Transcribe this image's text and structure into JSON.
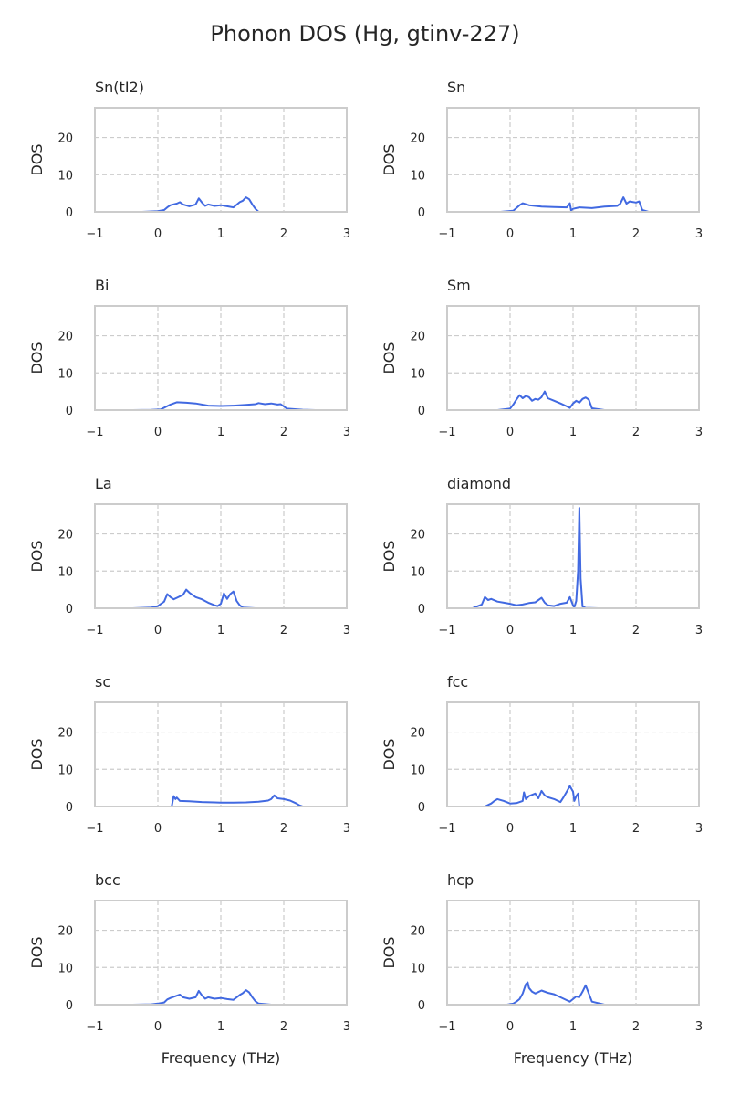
{
  "title": "Phonon DOS (Hg, gtinv-227)",
  "colors": {
    "line": "#4169e1",
    "frame": "#cccccc",
    "grid": "#cccccc",
    "text": "#262626",
    "background": "#ffffff"
  },
  "chart_data": [
    {
      "type": "line",
      "title": "Sn(tI2)",
      "xlabel": "",
      "ylabel": "DOS",
      "xlim": [
        -1,
        3
      ],
      "ylim": [
        0,
        28
      ],
      "xticks": [
        "−1",
        "0",
        "1",
        "2",
        "3"
      ],
      "yticks": [
        "0",
        "10",
        "20"
      ],
      "grid": true,
      "x": [
        -0.25,
        0.0,
        0.1,
        0.15,
        0.2,
        0.3,
        0.35,
        0.4,
        0.5,
        0.6,
        0.65,
        0.7,
        0.75,
        0.8,
        0.9,
        1.0,
        1.1,
        1.2,
        1.3,
        1.35,
        1.4,
        1.45,
        1.5,
        1.55,
        1.6
      ],
      "y": [
        0,
        0.2,
        0.5,
        1.2,
        1.8,
        2.2,
        2.6,
        2.0,
        1.5,
        2.0,
        3.6,
        2.5,
        1.6,
        2.0,
        1.6,
        1.8,
        1.5,
        1.2,
        2.6,
        3.0,
        3.9,
        3.4,
        2.0,
        0.8,
        0
      ]
    },
    {
      "type": "line",
      "title": "Sn",
      "xlabel": "",
      "ylabel": "DOS",
      "xlim": [
        -1,
        3
      ],
      "ylim": [
        0,
        28
      ],
      "xticks": [
        "−1",
        "0",
        "1",
        "2",
        "3"
      ],
      "yticks": [
        "0",
        "10",
        "20"
      ],
      "grid": true,
      "x": [
        -0.15,
        0.05,
        0.1,
        0.15,
        0.2,
        0.3,
        0.5,
        0.7,
        0.9,
        0.95,
        0.97,
        1.0,
        1.1,
        1.3,
        1.5,
        1.7,
        1.75,
        1.8,
        1.85,
        1.9,
        2.0,
        2.05,
        2.1,
        2.2
      ],
      "y": [
        0,
        0.3,
        1.0,
        1.8,
        2.3,
        1.8,
        1.4,
        1.3,
        1.2,
        2.3,
        0.4,
        0.8,
        1.2,
        1.0,
        1.4,
        1.6,
        2.2,
        3.9,
        2.2,
        2.8,
        2.5,
        2.8,
        0.5,
        0
      ]
    },
    {
      "type": "line",
      "title": "Bi",
      "xlabel": "",
      "ylabel": "DOS",
      "xlim": [
        -1,
        3
      ],
      "ylim": [
        0,
        28
      ],
      "xticks": [
        "−1",
        "0",
        "1",
        "2",
        "3"
      ],
      "yticks": [
        "0",
        "10",
        "20"
      ],
      "grid": true,
      "x": [
        -0.4,
        -0.1,
        0.05,
        0.2,
        0.3,
        0.45,
        0.6,
        0.8,
        1.0,
        1.2,
        1.4,
        1.55,
        1.6,
        1.7,
        1.8,
        1.9,
        1.95,
        2.05,
        2.3,
        2.5
      ],
      "y": [
        0,
        0.05,
        0.2,
        1.5,
        2.1,
        2.0,
        1.8,
        1.2,
        1.1,
        1.2,
        1.4,
        1.6,
        1.9,
        1.6,
        1.8,
        1.5,
        1.6,
        0.4,
        0.1,
        0
      ]
    },
    {
      "type": "line",
      "title": "Sm",
      "xlabel": "",
      "ylabel": "DOS",
      "xlim": [
        -1,
        3
      ],
      "ylim": [
        0,
        28
      ],
      "xticks": [
        "−1",
        "0",
        "1",
        "2",
        "3"
      ],
      "yticks": [
        "0",
        "10",
        "20"
      ],
      "grid": true,
      "x": [
        -0.2,
        0.0,
        0.05,
        0.1,
        0.15,
        0.2,
        0.25,
        0.3,
        0.35,
        0.4,
        0.45,
        0.5,
        0.55,
        0.6,
        0.7,
        0.8,
        0.9,
        0.95,
        1.0,
        1.05,
        1.1,
        1.15,
        1.2,
        1.25,
        1.3,
        1.5
      ],
      "y": [
        0,
        0.4,
        1.5,
        2.8,
        4.0,
        3.2,
        3.8,
        3.5,
        2.5,
        3.0,
        2.8,
        3.5,
        5.0,
        3.2,
        2.5,
        1.8,
        1.0,
        0.6,
        1.8,
        2.5,
        2.0,
        3.0,
        3.4,
        2.8,
        0.5,
        0
      ]
    },
    {
      "type": "line",
      "title": "La",
      "xlabel": "",
      "ylabel": "DOS",
      "xlim": [
        -1,
        3
      ],
      "ylim": [
        0,
        28
      ],
      "xticks": [
        "−1",
        "0",
        "1",
        "2",
        "3"
      ],
      "yticks": [
        "0",
        "10",
        "20"
      ],
      "grid": true,
      "x": [
        -0.4,
        -0.1,
        0.0,
        0.1,
        0.15,
        0.2,
        0.25,
        0.3,
        0.4,
        0.45,
        0.5,
        0.6,
        0.7,
        0.8,
        0.9,
        0.95,
        1.0,
        1.05,
        1.1,
        1.15,
        1.2,
        1.25,
        1.3,
        1.35,
        1.55
      ],
      "y": [
        0,
        0.2,
        0.6,
        1.8,
        3.8,
        3.0,
        2.4,
        2.8,
        3.6,
        5.0,
        4.2,
        3.0,
        2.4,
        1.5,
        0.8,
        0.6,
        1.2,
        4.0,
        2.5,
        3.8,
        4.5,
        2.0,
        0.8,
        0.2,
        0
      ]
    },
    {
      "type": "line",
      "title": "diamond",
      "xlabel": "",
      "ylabel": "DOS",
      "xlim": [
        -1,
        3
      ],
      "ylim": [
        0,
        28
      ],
      "xticks": [
        "−1",
        "0",
        "1",
        "2",
        "3"
      ],
      "yticks": [
        "0",
        "10",
        "20"
      ],
      "grid": true,
      "x": [
        -0.6,
        -0.45,
        -0.4,
        -0.35,
        -0.3,
        -0.2,
        -0.1,
        0.0,
        0.1,
        0.2,
        0.3,
        0.4,
        0.5,
        0.55,
        0.6,
        0.7,
        0.8,
        0.9,
        0.95,
        1.0,
        1.02,
        1.05,
        1.08,
        1.1,
        1.12,
        1.15,
        1.2,
        1.4
      ],
      "y": [
        0,
        1.0,
        3.0,
        2.2,
        2.5,
        1.8,
        1.5,
        1.2,
        0.8,
        1.0,
        1.4,
        1.6,
        2.8,
        1.5,
        0.8,
        0.6,
        1.2,
        1.5,
        3.0,
        0.8,
        0.3,
        2.0,
        10.0,
        27.0,
        8.0,
        0.5,
        0.1,
        0
      ]
    },
    {
      "type": "line",
      "title": "sc",
      "xlabel": "",
      "ylabel": "DOS",
      "xlim": [
        -1,
        3
      ],
      "ylim": [
        0,
        28
      ],
      "xticks": [
        "−1",
        "0",
        "1",
        "2",
        "3"
      ],
      "yticks": [
        "0",
        "10",
        "20"
      ],
      "grid": true,
      "x": [
        0.22,
        0.25,
        0.28,
        0.3,
        0.35,
        0.5,
        0.7,
        0.9,
        1.0,
        1.2,
        1.4,
        1.6,
        1.75,
        1.8,
        1.85,
        1.9,
        2.0,
        2.1,
        2.2,
        2.25,
        2.3
      ],
      "y": [
        0,
        2.8,
        2.0,
        2.4,
        1.5,
        1.4,
        1.2,
        1.1,
        1.05,
        1.05,
        1.1,
        1.3,
        1.6,
        2.0,
        3.0,
        2.2,
        2.0,
        1.6,
        0.8,
        0.3,
        0
      ]
    },
    {
      "type": "line",
      "title": "fcc",
      "xlabel": "",
      "ylabel": "DOS",
      "xlim": [
        -1,
        3
      ],
      "ylim": [
        0,
        28
      ],
      "xticks": [
        "−1",
        "0",
        "1",
        "2",
        "3"
      ],
      "yticks": [
        "0",
        "10",
        "20"
      ],
      "grid": true,
      "x": [
        -0.4,
        -0.3,
        -0.25,
        -0.2,
        -0.1,
        0.0,
        0.1,
        0.2,
        0.22,
        0.25,
        0.3,
        0.4,
        0.45,
        0.5,
        0.55,
        0.6,
        0.7,
        0.8,
        0.85,
        0.9,
        0.95,
        1.0,
        1.02,
        1.05,
        1.08,
        1.1
      ],
      "y": [
        0,
        0.8,
        1.5,
        2.0,
        1.5,
        0.8,
        0.9,
        1.5,
        3.8,
        2.0,
        2.8,
        3.5,
        2.2,
        4.2,
        3.0,
        2.5,
        2.0,
        1.2,
        2.5,
        4.0,
        5.5,
        4.0,
        1.5,
        2.8,
        3.5,
        0
      ]
    },
    {
      "type": "line",
      "title": "bcc",
      "xlabel": "Frequency (THz)",
      "ylabel": "DOS",
      "xlim": [
        -1,
        3
      ],
      "ylim": [
        0,
        28
      ],
      "xticks": [
        "−1",
        "0",
        "1",
        "2",
        "3"
      ],
      "yticks": [
        "0",
        "10",
        "20"
      ],
      "grid": true,
      "x": [
        -0.4,
        -0.1,
        0.0,
        0.1,
        0.15,
        0.2,
        0.3,
        0.35,
        0.4,
        0.5,
        0.6,
        0.65,
        0.7,
        0.75,
        0.8,
        0.9,
        1.0,
        1.1,
        1.2,
        1.3,
        1.35,
        1.4,
        1.45,
        1.5,
        1.55,
        1.6,
        1.8
      ],
      "y": [
        0,
        0.1,
        0.3,
        0.6,
        1.4,
        1.8,
        2.4,
        2.7,
        2.0,
        1.6,
        2.0,
        3.7,
        2.5,
        1.6,
        2.0,
        1.6,
        1.8,
        1.5,
        1.3,
        2.6,
        3.1,
        3.9,
        3.3,
        2.0,
        0.9,
        0.3,
        0
      ]
    },
    {
      "type": "line",
      "title": "hcp",
      "xlabel": "Frequency (THz)",
      "ylabel": "DOS",
      "xlim": [
        -1,
        3
      ],
      "ylim": [
        0,
        28
      ],
      "xticks": [
        "−1",
        "0",
        "1",
        "2",
        "3"
      ],
      "yticks": [
        "0",
        "10",
        "20"
      ],
      "grid": true,
      "x": [
        -0.05,
        0.05,
        0.1,
        0.15,
        0.2,
        0.25,
        0.28,
        0.3,
        0.35,
        0.4,
        0.5,
        0.6,
        0.7,
        0.8,
        0.9,
        0.95,
        1.0,
        1.05,
        1.1,
        1.15,
        1.2,
        1.25,
        1.3,
        1.5
      ],
      "y": [
        0,
        0.3,
        0.8,
        1.5,
        3.0,
        5.5,
        6.0,
        4.5,
        3.5,
        3.0,
        3.8,
        3.2,
        2.8,
        2.0,
        1.2,
        0.8,
        1.5,
        2.2,
        2.0,
        3.5,
        5.2,
        3.0,
        0.8,
        0
      ]
    }
  ]
}
